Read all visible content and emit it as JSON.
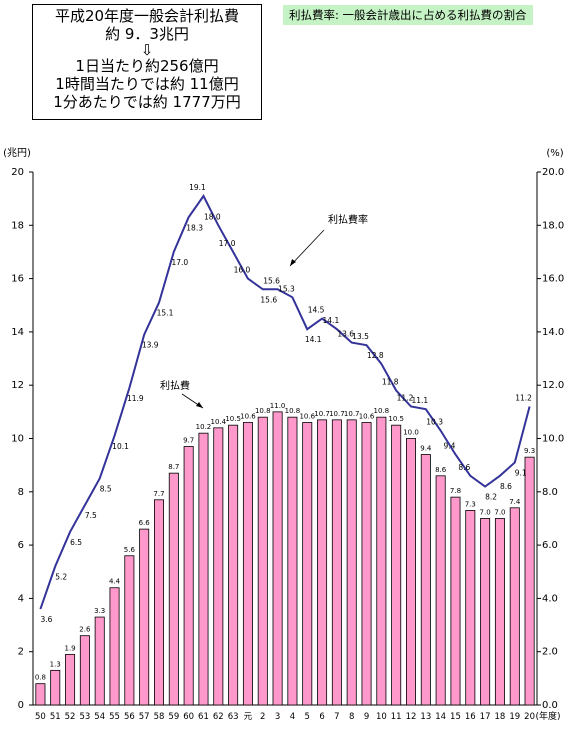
{
  "summary": {
    "line1": "平成20年度一般会計利払費",
    "line2": "約 9．3兆円",
    "arrow": "⇩",
    "line3": "1日当たり約256億円",
    "line4": "1時間当たりでは約 11億円",
    "line5": "1分あたりでは約 1777万円"
  },
  "legend_title": "利払費率: 一般会計歳出に占める利払費の割合",
  "chart_data": {
    "type": "bar+line",
    "left_axis_unit": "(兆円)",
    "right_axis_unit": "(%)",
    "x_axis_unit": "(年度)",
    "ylim": [
      0,
      20
    ],
    "y2lim": [
      0,
      20
    ],
    "y_ticks": [
      "0",
      "2",
      "4",
      "6",
      "8",
      "10",
      "12",
      "14",
      "16",
      "18",
      "20"
    ],
    "y2_ticks": [
      "0.0",
      "2.0",
      "4.0",
      "6.0",
      "8.0",
      "10.0",
      "12.0",
      "14.0",
      "16.0",
      "18.0",
      "20.0"
    ],
    "categories": [
      "50",
      "51",
      "52",
      "53",
      "54",
      "55",
      "56",
      "57",
      "58",
      "59",
      "60",
      "61",
      "62",
      "63",
      "元",
      "2",
      "3",
      "4",
      "5",
      "6",
      "7",
      "8",
      "9",
      "10",
      "11",
      "12",
      "13",
      "14",
      "15",
      "16",
      "17",
      "18",
      "19",
      "20"
    ],
    "bar_series": {
      "name": "利払費",
      "color": "#ff99cc",
      "values": [
        0.8,
        1.3,
        1.9,
        2.6,
        3.3,
        4.4,
        5.6,
        6.6,
        7.7,
        8.7,
        9.7,
        10.2,
        10.4,
        10.5,
        10.6,
        10.8,
        11.0,
        10.8,
        10.6,
        10.7,
        10.7,
        10.7,
        10.6,
        10.8,
        10.5,
        10.0,
        9.4,
        8.6,
        7.8,
        7.3,
        7.0,
        7.0,
        7.4,
        9.3
      ],
      "labels": [
        "0.8",
        "1.3",
        "1.9",
        "2.6",
        "3.3",
        "4.4",
        "5.6",
        "6.6",
        "7.7",
        "8.7",
        "9.7",
        "10.2",
        "10.4",
        "10.5",
        "10.6",
        "10.8",
        "11.0",
        "10.8",
        "10.6",
        "10.7",
        "10.7",
        "10.7",
        "10.6",
        "10.8",
        "10.5",
        "10.0",
        "9.4",
        "8.6",
        "7.8",
        "7.3",
        "7.0",
        "7.0",
        "7.4",
        "9.3"
      ]
    },
    "line_series": {
      "name": "利払費率",
      "color": "#333399",
      "values": [
        3.6,
        5.2,
        6.5,
        7.5,
        8.5,
        10.1,
        11.9,
        13.9,
        15.1,
        17.0,
        18.3,
        19.1,
        18.0,
        17.0,
        16.0,
        15.6,
        15.6,
        15.3,
        14.1,
        14.5,
        14.1,
        13.6,
        13.5,
        12.8,
        11.8,
        11.2,
        11.1,
        10.3,
        9.4,
        8.6,
        8.2,
        8.6,
        9.1,
        11.2
      ],
      "labels": [
        "3.6",
        "5.2",
        "6.5",
        "7.5",
        "8.5",
        "10.1",
        "11.9",
        "13.9",
        "15.1",
        "17.0",
        "18.3",
        "19.1",
        "18.0",
        "17.0",
        "16.0",
        "15.6",
        "15.6",
        "15.3",
        "14.1",
        "14.5",
        "14.1",
        "13.6",
        "13.5",
        "12.8",
        "11.8",
        "11.2",
        "11.1",
        "10.3",
        "9.4",
        "8.6",
        "8.2",
        "8.6",
        "9.1",
        "11.2"
      ]
    },
    "annotations": {
      "line_label": "利払費率",
      "bar_label": "利払費"
    }
  }
}
